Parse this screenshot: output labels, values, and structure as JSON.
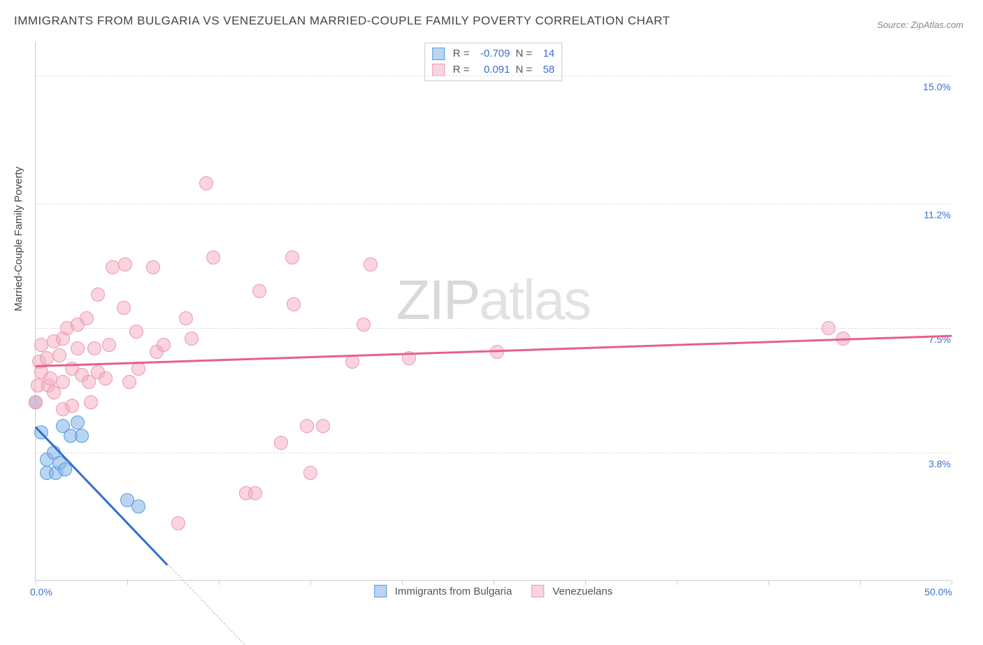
{
  "title": "IMMIGRANTS FROM BULGARIA VS VENEZUELAN MARRIED-COUPLE FAMILY POVERTY CORRELATION CHART",
  "source": "Source: ZipAtlas.com",
  "watermark_bold": "ZIP",
  "watermark_thin": "atlas",
  "yaxis_title": "Married-Couple Family Poverty",
  "chart": {
    "type": "scatter",
    "xlim": [
      0,
      50
    ],
    "ylim": [
      0,
      16
    ],
    "x_label_min": "0.0%",
    "x_label_max": "50.0%",
    "y_gridlines": [
      {
        "v": 3.8,
        "label": "3.8%"
      },
      {
        "v": 7.5,
        "label": "7.5%"
      },
      {
        "v": 11.2,
        "label": "11.2%"
      },
      {
        "v": 15.0,
        "label": "15.0%"
      }
    ],
    "x_ticks": [
      0,
      5,
      10,
      15,
      20,
      25,
      30,
      35,
      40,
      45,
      50
    ],
    "colors": {
      "blue_fill": "rgba(127,179,231,0.55)",
      "blue_stroke": "#5a9bdc",
      "blue_line": "#2f6fd0",
      "pink_fill": "rgba(245,170,190,0.5)",
      "pink_stroke": "#e89ab0",
      "pink_line": "#e85f8b",
      "axis": "#cccccc",
      "grid": "#dddddd",
      "text_axis": "#3b6fd4"
    },
    "series": [
      {
        "name": "Immigrants from Bulgaria",
        "color": "blue",
        "R": "-0.709",
        "N": "14",
        "trend": {
          "x1": 0,
          "y1": 4.6,
          "x2": 7.2,
          "y2": 0.5,
          "dashed_extend_to_x": 11.4
        },
        "points": [
          {
            "x": 0.0,
            "y": 5.3
          },
          {
            "x": 0.3,
            "y": 4.4
          },
          {
            "x": 0.6,
            "y": 3.6
          },
          {
            "x": 0.6,
            "y": 3.2
          },
          {
            "x": 1.0,
            "y": 3.8
          },
          {
            "x": 1.1,
            "y": 3.2
          },
          {
            "x": 1.3,
            "y": 3.5
          },
          {
            "x": 1.5,
            "y": 4.6
          },
          {
            "x": 1.6,
            "y": 3.3
          },
          {
            "x": 1.9,
            "y": 4.3
          },
          {
            "x": 2.3,
            "y": 4.7
          },
          {
            "x": 2.5,
            "y": 4.3
          },
          {
            "x": 5.0,
            "y": 2.4
          },
          {
            "x": 5.6,
            "y": 2.2
          }
        ]
      },
      {
        "name": "Venezuelans",
        "color": "pink",
        "R": "0.091",
        "N": "58",
        "trend": {
          "x1": 0,
          "y1": 6.4,
          "x2": 50,
          "y2": 7.3
        },
        "points": [
          {
            "x": 0.0,
            "y": 5.3
          },
          {
            "x": 0.1,
            "y": 5.8
          },
          {
            "x": 0.2,
            "y": 6.5
          },
          {
            "x": 0.3,
            "y": 7.0
          },
          {
            "x": 0.3,
            "y": 6.2
          },
          {
            "x": 0.6,
            "y": 6.6
          },
          {
            "x": 0.7,
            "y": 5.8
          },
          {
            "x": 0.8,
            "y": 6.0
          },
          {
            "x": 1.0,
            "y": 7.1
          },
          {
            "x": 1.0,
            "y": 5.6
          },
          {
            "x": 1.3,
            "y": 6.7
          },
          {
            "x": 1.5,
            "y": 7.2
          },
          {
            "x": 1.5,
            "y": 5.1
          },
          {
            "x": 1.5,
            "y": 5.9
          },
          {
            "x": 1.7,
            "y": 7.5
          },
          {
            "x": 2.0,
            "y": 5.2
          },
          {
            "x": 2.0,
            "y": 6.3
          },
          {
            "x": 2.3,
            "y": 6.9
          },
          {
            "x": 2.3,
            "y": 7.6
          },
          {
            "x": 2.5,
            "y": 6.1
          },
          {
            "x": 2.8,
            "y": 7.8
          },
          {
            "x": 2.9,
            "y": 5.9
          },
          {
            "x": 3.0,
            "y": 5.3
          },
          {
            "x": 3.2,
            "y": 6.9
          },
          {
            "x": 3.4,
            "y": 6.2
          },
          {
            "x": 3.4,
            "y": 8.5
          },
          {
            "x": 3.8,
            "y": 6.0
          },
          {
            "x": 4.0,
            "y": 7.0
          },
          {
            "x": 4.2,
            "y": 9.3
          },
          {
            "x": 4.8,
            "y": 8.1
          },
          {
            "x": 4.9,
            "y": 9.4
          },
          {
            "x": 5.1,
            "y": 5.9
          },
          {
            "x": 5.5,
            "y": 7.4
          },
          {
            "x": 5.6,
            "y": 6.3
          },
          {
            "x": 6.4,
            "y": 9.3
          },
          {
            "x": 6.6,
            "y": 6.8
          },
          {
            "x": 7.0,
            "y": 7.0
          },
          {
            "x": 7.8,
            "y": 1.7
          },
          {
            "x": 8.2,
            "y": 7.8
          },
          {
            "x": 8.5,
            "y": 7.2
          },
          {
            "x": 9.3,
            "y": 11.8
          },
          {
            "x": 9.7,
            "y": 9.6
          },
          {
            "x": 11.5,
            "y": 2.6
          },
          {
            "x": 12.0,
            "y": 2.6
          },
          {
            "x": 12.2,
            "y": 8.6
          },
          {
            "x": 13.4,
            "y": 4.1
          },
          {
            "x": 14.0,
            "y": 9.6
          },
          {
            "x": 14.1,
            "y": 8.2
          },
          {
            "x": 14.8,
            "y": 4.6
          },
          {
            "x": 15.0,
            "y": 3.2
          },
          {
            "x": 15.7,
            "y": 4.6
          },
          {
            "x": 17.3,
            "y": 6.5
          },
          {
            "x": 17.9,
            "y": 7.6
          },
          {
            "x": 18.3,
            "y": 9.4
          },
          {
            "x": 20.4,
            "y": 6.6
          },
          {
            "x": 25.2,
            "y": 6.8
          },
          {
            "x": 43.3,
            "y": 7.5
          },
          {
            "x": 44.1,
            "y": 7.2
          }
        ]
      }
    ]
  },
  "legend_labels": [
    "Immigrants from Bulgaria",
    "Venezuelans"
  ],
  "stat_labels": {
    "R": "R =",
    "N": "N ="
  }
}
